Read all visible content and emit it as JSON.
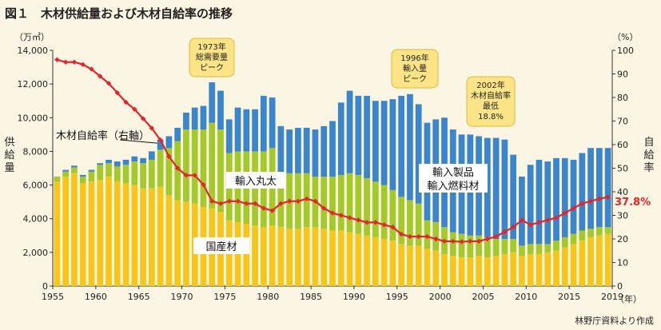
{
  "chart_data": {
    "type": "bar",
    "title": "図１　木材供給量および木材自給率の推移",
    "left_axis_unit": "（万㎥）",
    "right_axis_unit": "（%）",
    "x_unit": "（年）",
    "ylabel_left": "供給量",
    "ylabel_right": "自給率",
    "source": "林野庁資料より作成",
    "ylim_left": [
      0,
      14000
    ],
    "ylim_right": [
      0,
      100
    ],
    "y_ticks_left": [
      "0",
      "2,000",
      "4,000",
      "6,000",
      "8,000",
      "10,000",
      "12,000",
      "14,000"
    ],
    "y_ticks_right": [
      "0",
      "10",
      "20",
      "30",
      "40",
      "50",
      "60",
      "70",
      "80",
      "90",
      "100"
    ],
    "x_ticks": [
      "1955",
      "1960",
      "1965",
      "1970",
      "1975",
      "1980",
      "1985",
      "1990",
      "1995",
      "2000",
      "2005",
      "2010",
      "2015",
      "2019"
    ],
    "years": [
      1955,
      1956,
      1957,
      1958,
      1959,
      1960,
      1961,
      1962,
      1963,
      1964,
      1965,
      1966,
      1967,
      1968,
      1969,
      1970,
      1971,
      1972,
      1973,
      1974,
      1975,
      1976,
      1977,
      1978,
      1979,
      1980,
      1981,
      1982,
      1983,
      1984,
      1985,
      1986,
      1987,
      1988,
      1989,
      1990,
      1991,
      1992,
      1993,
      1994,
      1995,
      1996,
      1997,
      1998,
      1999,
      2000,
      2001,
      2002,
      2003,
      2004,
      2005,
      2006,
      2007,
      2008,
      2009,
      2010,
      2011,
      2012,
      2013,
      2014,
      2015,
      2016,
      2017,
      2018,
      2019
    ],
    "series": [
      {
        "name": "国産材",
        "color": "#f7c618",
        "values": [
          6200,
          6500,
          6700,
          6100,
          6200,
          6300,
          6500,
          6200,
          6100,
          6000,
          5800,
          5800,
          5900,
          5400,
          5100,
          5000,
          4900,
          4700,
          4600,
          4400,
          3900,
          3800,
          3700,
          3600,
          3500,
          3600,
          3500,
          3400,
          3400,
          3500,
          3500,
          3400,
          3300,
          3300,
          3200,
          3100,
          3000,
          2900,
          2800,
          2700,
          2500,
          2400,
          2400,
          2200,
          2100,
          1900,
          1800,
          1700,
          1700,
          1800,
          1700,
          1800,
          1900,
          2000,
          1800,
          1900,
          1900,
          2000,
          2100,
          2300,
          2500,
          2700,
          2900,
          3000,
          3100
        ]
      },
      {
        "name": "輸入丸太",
        "color": "#a4c92a",
        "values": [
          300,
          300,
          350,
          400,
          600,
          900,
          800,
          900,
          1100,
          1400,
          1500,
          1700,
          2200,
          2800,
          3500,
          4300,
          4400,
          4600,
          5100,
          4900,
          4000,
          4200,
          4300,
          4400,
          4500,
          4600,
          3200,
          3300,
          3300,
          3200,
          3000,
          3100,
          3200,
          3300,
          3500,
          3500,
          3400,
          3300,
          3200,
          3000,
          2800,
          2700,
          2500,
          1700,
          1700,
          1600,
          1400,
          1400,
          1300,
          1200,
          1200,
          1000,
          900,
          800,
          600,
          600,
          600,
          500,
          600,
          600,
          600,
          600,
          500,
          500,
          400
        ]
      },
      {
        "name": "輸入製品・輸入燃料材",
        "color": "#3b85cc",
        "values": [
          0,
          100,
          100,
          100,
          100,
          100,
          200,
          300,
          300,
          300,
          300,
          500,
          600,
          700,
          800,
          1000,
          1300,
          1400,
          2400,
          2300,
          2000,
          2600,
          2500,
          2500,
          3300,
          3000,
          2800,
          2600,
          2700,
          2700,
          2800,
          3000,
          3300,
          4300,
          4900,
          4700,
          4900,
          4800,
          5000,
          5400,
          6000,
          6300,
          5900,
          5800,
          6100,
          6500,
          6100,
          5900,
          6000,
          5900,
          5900,
          6000,
          5900,
          5000,
          4100,
          4700,
          5000,
          4900,
          4900,
          4700,
          4400,
          4600,
          4800,
          4700,
          4700
        ]
      },
      {
        "name": "木材自給率（右軸）",
        "color": "#e8242a",
        "axis": "right",
        "values": [
          96,
          95,
          95,
          94,
          92,
          89,
          86,
          82,
          78,
          75,
          71,
          67,
          62,
          55,
          50,
          47,
          47,
          43,
          36,
          35,
          36,
          36,
          35,
          35,
          33,
          32,
          35,
          36,
          36,
          37,
          36,
          33,
          31,
          30,
          29,
          28,
          27,
          27,
          26,
          25,
          22,
          21,
          21,
          21,
          20,
          19,
          19,
          18.8,
          19,
          19,
          20,
          21,
          23,
          25,
          28,
          26,
          27,
          28,
          29,
          31,
          33,
          35,
          36,
          37,
          37.8
        ]
      }
    ],
    "annotations": [
      {
        "lines": [
          "1973年",
          "総需要量",
          "ピーク"
        ],
        "year": 1973
      },
      {
        "lines": [
          "1996年",
          "輸入量",
          "ピーク"
        ],
        "year": 1996
      },
      {
        "lines": [
          "2002年",
          "木材自給率",
          "最低",
          "18.8%"
        ],
        "year": 2002
      }
    ],
    "series_labels": {
      "self_rate": "木材自給率（右軸）",
      "import_log": "輸入丸太",
      "import_product_1": "輸入製品",
      "import_product_2": "輸入燃料材",
      "domestic": "国産材",
      "last_rate": "37.8%"
    },
    "grid": false,
    "legend": "inline labels"
  }
}
